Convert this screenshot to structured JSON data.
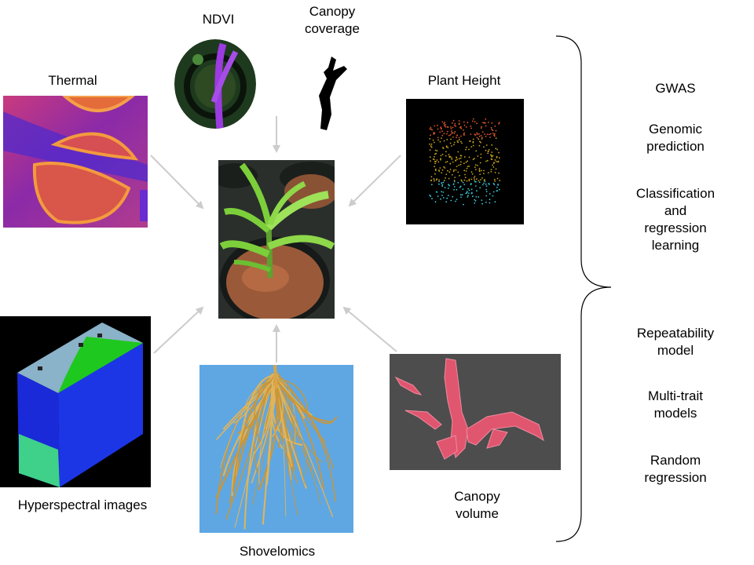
{
  "inputs": {
    "thermal": "Thermal",
    "ndvi": "NDVI",
    "canopy_coverage": "Canopy\ncoverage",
    "plant_height": "Plant Height",
    "hyperspectral": "Hyperspectral images",
    "shovelomics": "Shovelomics",
    "canopy_volume": "Canopy\nvolume"
  },
  "methods_upper": [
    "GWAS",
    "Genomic\nprediction",
    "Classification\nand\nregression\nlearning"
  ],
  "methods_lower": [
    "Repeatability\nmodel",
    "Multi-trait\nmodels",
    "Random\nregression"
  ],
  "colors": {
    "arrow": "#cccccc",
    "bracket": "#000000",
    "canopy_volume_bg": "#4d4d4d",
    "root_bg": "#5ea7e3"
  },
  "icons": [
    "thermal-image-icon",
    "ndvi-image-icon",
    "canopy-silhouette-icon",
    "point-cloud-icon",
    "maize-plant-photo-icon",
    "hyperspectral-cube-icon",
    "root-photo-icon",
    "mesh-model-icon"
  ]
}
